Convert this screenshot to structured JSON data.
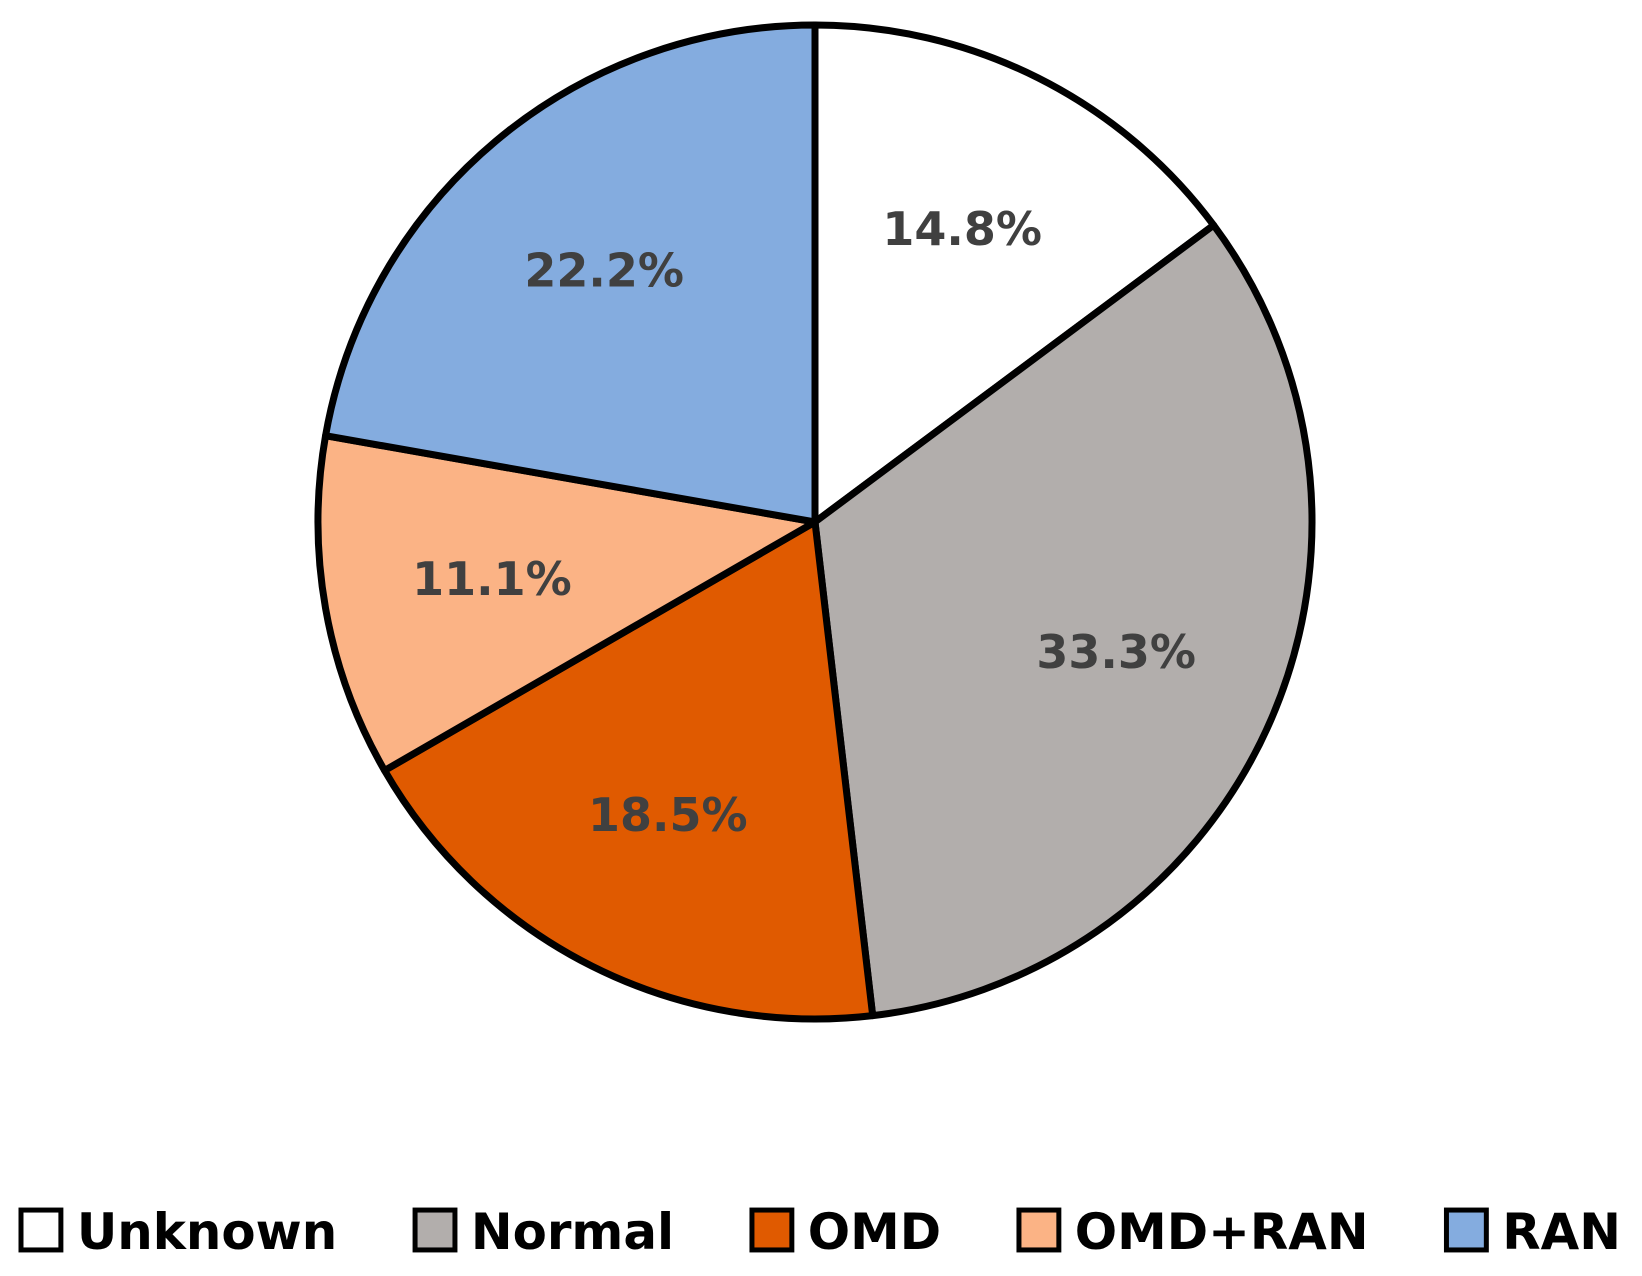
{
  "chart_data": {
    "type": "pie",
    "start_angle_deg": 0,
    "direction": "clockwise",
    "legend_placement": "bottom",
    "slices": [
      {
        "name": "Unknown",
        "value": 14.8,
        "label": "14.8%",
        "color": "#ffffff"
      },
      {
        "name": "Normal",
        "value": 33.3,
        "label": "33.3%",
        "color": "#b2aeac"
      },
      {
        "name": "OMD",
        "value": 18.5,
        "label": "18.5%",
        "color": "#e05a00"
      },
      {
        "name": "OMD+RAN",
        "value": 11.1,
        "label": "11.1%",
        "color": "#fbb385"
      },
      {
        "name": "RAN",
        "value": 22.2,
        "label": "22.2%",
        "color": "#84acdf"
      }
    ]
  }
}
